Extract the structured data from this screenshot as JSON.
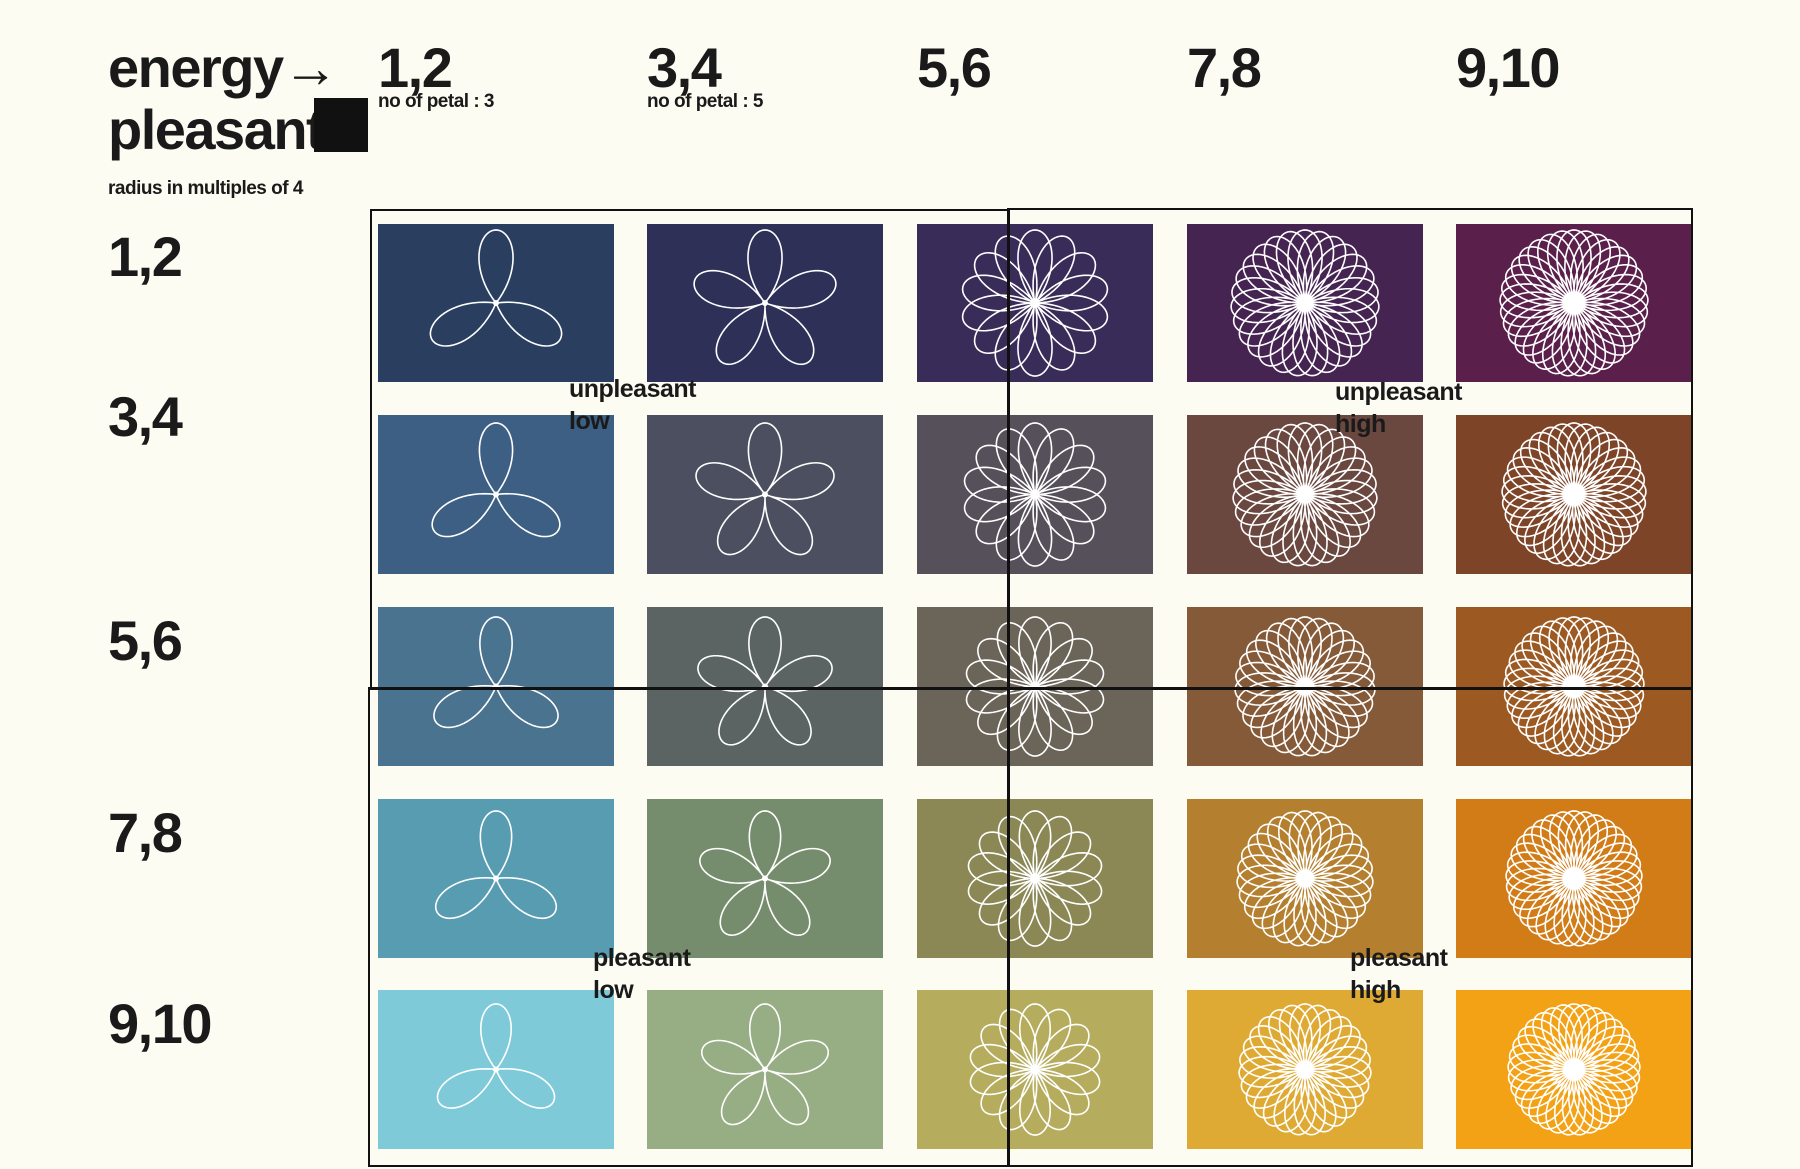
{
  "header": {
    "energy_label": "energy",
    "arrow": "→",
    "pleasant_label": "pleasant",
    "radius_note": "radius in multiples of 4"
  },
  "columns": [
    {
      "label": "1,2",
      "note": "no of petal : 3",
      "petals": 3
    },
    {
      "label": "3,4",
      "note": "no of petal : 5",
      "petals": 5
    },
    {
      "label": "5,6",
      "note": "",
      "petals": 7
    },
    {
      "label": "7,8",
      "note": "",
      "petals": 9
    },
    {
      "label": "9,10",
      "note": "",
      "petals": 11
    }
  ],
  "rows": [
    {
      "label": "1,2"
    },
    {
      "label": "3,4"
    },
    {
      "label": "5,6"
    },
    {
      "label": "7,8"
    },
    {
      "label": "9,10"
    }
  ],
  "colors": [
    [
      "#2a3e5f",
      "#2f3058",
      "#3a2c58",
      "#452452",
      "#5a1f4b"
    ],
    [
      "#3d5f84",
      "#4b4f5f",
      "#56505a",
      "#6a473f",
      "#7e4428"
    ],
    [
      "#4a7390",
      "#5b6462",
      "#6b6458",
      "#855a38",
      "#9c5a22"
    ],
    [
      "#589cb2",
      "#768d6d",
      "#8b8856",
      "#b47f2f",
      "#d17c17"
    ],
    [
      "#7fcad8",
      "#97ad83",
      "#b5ac5d",
      "#dfaa33",
      "#f3a115"
    ]
  ],
  "quadrants": {
    "top_left": [
      "unpleasant",
      "low"
    ],
    "top_right": [
      "unpleasant",
      "high"
    ],
    "bottom_left": [
      "pleasant",
      "low"
    ],
    "bottom_right": [
      "pleasant",
      "high"
    ]
  }
}
